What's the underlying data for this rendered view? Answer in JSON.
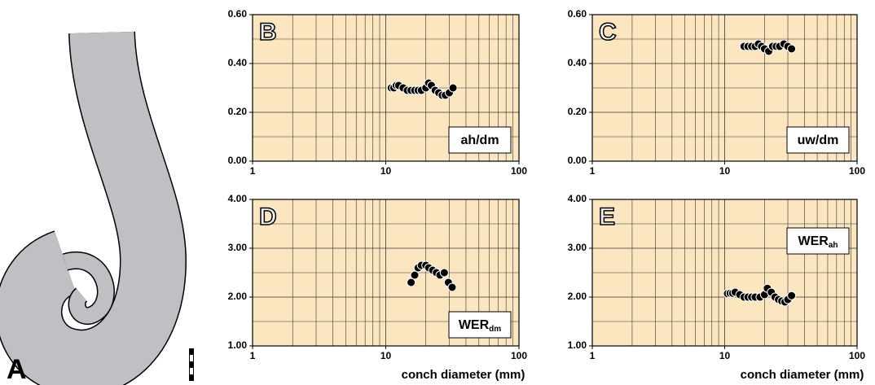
{
  "figure_label": "A",
  "chart_data": [
    {
      "type": "scatter",
      "label": "B",
      "annotation": "ah/dm",
      "annotation_corner": "lower right",
      "log_x": true,
      "grid": true,
      "color": "#000000",
      "background": "#fbe6bf",
      "xlim": [
        1,
        100
      ],
      "xticks": [
        1,
        10,
        100
      ],
      "ylim": [
        0,
        0.6
      ],
      "yticks": [
        {
          "value": 0,
          "label": "0.00"
        },
        {
          "value": 0.2,
          "label": "0.20"
        },
        {
          "value": 0.4,
          "label": "0.40"
        },
        {
          "value": 0.6,
          "label": "0.60"
        }
      ],
      "x": [
        11,
        11.5,
        12,
        12.5,
        13.5,
        14.5,
        15.5,
        16.5,
        17.5,
        18.5,
        20,
        21,
        22,
        23.5,
        25,
        26.5,
        28,
        30,
        32
      ],
      "values": [
        0.3,
        0.3,
        0.31,
        0.31,
        0.3,
        0.29,
        0.29,
        0.29,
        0.29,
        0.29,
        0.3,
        0.32,
        0.31,
        0.29,
        0.28,
        0.27,
        0.27,
        0.28,
        0.3
      ]
    },
    {
      "type": "scatter",
      "label": "C",
      "annotation": "uw/dm",
      "annotation_corner": "lower right",
      "log_x": true,
      "grid": true,
      "color": "#000000",
      "background": "#fbe6bf",
      "xlim": [
        1,
        100
      ],
      "xticks": [
        1,
        10,
        100
      ],
      "ylim": [
        0,
        0.6
      ],
      "yticks": [
        {
          "value": 0,
          "label": "0.00"
        },
        {
          "value": 0.2,
          "label": "0.20"
        },
        {
          "value": 0.4,
          "label": "0.40"
        },
        {
          "value": 0.6,
          "label": "0.60"
        }
      ],
      "x": [
        14,
        15,
        16,
        17,
        18,
        19,
        20,
        21.5,
        23,
        24.5,
        26,
        28,
        30,
        32
      ],
      "values": [
        0.47,
        0.47,
        0.47,
        0.47,
        0.48,
        0.47,
        0.46,
        0.45,
        0.47,
        0.47,
        0.47,
        0.48,
        0.47,
        0.46
      ]
    },
    {
      "type": "scatter",
      "label": "D",
      "annotation": "WER",
      "annotation_sub": "dm",
      "annotation_corner": "lower right",
      "log_x": true,
      "grid": true,
      "color": "#000000",
      "background": "#fbe6bf",
      "x_label": "conch diameter (mm)",
      "xlim": [
        1,
        100
      ],
      "xticks": [
        1,
        10,
        100
      ],
      "ylim": [
        1,
        4
      ],
      "yticks": [
        {
          "value": 1,
          "label": "1.00"
        },
        {
          "value": 2,
          "label": "2.00"
        },
        {
          "value": 3,
          "label": "3.00"
        },
        {
          "value": 4,
          "label": "4.00"
        }
      ],
      "x": [
        15.5,
        16.5,
        17.5,
        18.5,
        20,
        21,
        22.5,
        24,
        25.5,
        27.5,
        29.5,
        31.5
      ],
      "values": [
        2.3,
        2.45,
        2.6,
        2.65,
        2.65,
        2.6,
        2.55,
        2.5,
        2.45,
        2.5,
        2.3,
        2.2
      ]
    },
    {
      "type": "scatter",
      "label": "E",
      "annotation": "WER",
      "annotation_sub": "ah",
      "annotation_corner": "upper right",
      "log_x": true,
      "grid": true,
      "color": "#000000",
      "background": "#fbe6bf",
      "x_label": "conch diameter (mm)",
      "xlim": [
        1,
        100
      ],
      "xticks": [
        1,
        10,
        100
      ],
      "ylim": [
        1,
        4
      ],
      "yticks": [
        {
          "value": 1,
          "label": "1.00"
        },
        {
          "value": 2,
          "label": "2.00"
        },
        {
          "value": 3,
          "label": "3.00"
        },
        {
          "value": 4,
          "label": "4.00"
        }
      ],
      "x": [
        10.5,
        11,
        11.5,
        12,
        13,
        14,
        15,
        16,
        17,
        18.5,
        20,
        21,
        22.5,
        24,
        25.5,
        27,
        28.5,
        30,
        32
      ],
      "values": [
        2.07,
        2.08,
        2.08,
        2.1,
        2.05,
        2.0,
        2.0,
        2.0,
        2.0,
        2.0,
        2.05,
        2.18,
        2.1,
        2.0,
        1.95,
        1.92,
        1.9,
        1.95,
        2.03
      ]
    }
  ]
}
